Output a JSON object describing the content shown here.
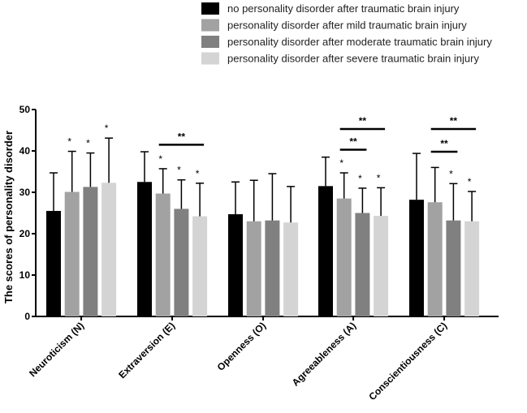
{
  "chart_data": {
    "type": "bar",
    "title": "",
    "xlabel": "",
    "ylabel": "The scores of personality disorder",
    "ylim": [
      0,
      50
    ],
    "yticks": [
      0,
      10,
      20,
      30,
      40,
      50
    ],
    "categories": [
      "Neuroticism (N)",
      "Extraversion (E)",
      "Openness (O)",
      "Agreeableness (A)",
      "Conscientiousness (C)"
    ],
    "series": [
      {
        "name": "no personality disorder after traumatic brain injury",
        "color": "#000000",
        "values": [
          25.5,
          32.5,
          24.7,
          31.5,
          28.2
        ],
        "errors": [
          9.2,
          7.3,
          7.8,
          7.0,
          11.2
        ],
        "stars": [
          "",
          "",
          "",
          "",
          ""
        ]
      },
      {
        "name": "personality disorder after mild traumatic brain injury",
        "color": "#a2a2a2",
        "values": [
          30.1,
          29.7,
          23.0,
          28.5,
          27.6
        ],
        "errors": [
          9.8,
          6.0,
          9.9,
          6.2,
          8.4
        ],
        "stars": [
          "*",
          "*",
          "",
          "*",
          ""
        ]
      },
      {
        "name": "personality disorder after moderate traumatic brain injury",
        "color": "#808080",
        "values": [
          31.3,
          26.0,
          23.2,
          25.0,
          23.2
        ],
        "errors": [
          8.2,
          7.0,
          11.3,
          6.0,
          8.9
        ],
        "stars": [
          "*",
          "*",
          "",
          "*",
          "*"
        ]
      },
      {
        "name": "personality disorder after severe traumatic brain injury",
        "color": "#d4d4d4",
        "values": [
          32.3,
          24.2,
          22.7,
          24.3,
          23.0
        ],
        "errors": [
          10.8,
          8.0,
          8.7,
          6.8,
          7.2
        ],
        "stars": [
          "*",
          "*",
          "",
          "*",
          "*"
        ]
      }
    ],
    "significance": [
      {
        "category": 1,
        "from_series": 1,
        "to_series": 3,
        "y": 41.5,
        "label": "**"
      },
      {
        "category": 3,
        "from_series": 1,
        "to_series": 2,
        "y": 40.3,
        "label": "**"
      },
      {
        "category": 3,
        "from_series": 1,
        "to_series": 3,
        "y": 45.3,
        "label": "**"
      },
      {
        "category": 4,
        "from_series": 1,
        "to_series": 2,
        "y": 39.8,
        "label": "**"
      },
      {
        "category": 4,
        "from_series": 1,
        "to_series": 3,
        "y": 45.3,
        "label": "**"
      }
    ],
    "legend": "top-right",
    "grid": false
  }
}
